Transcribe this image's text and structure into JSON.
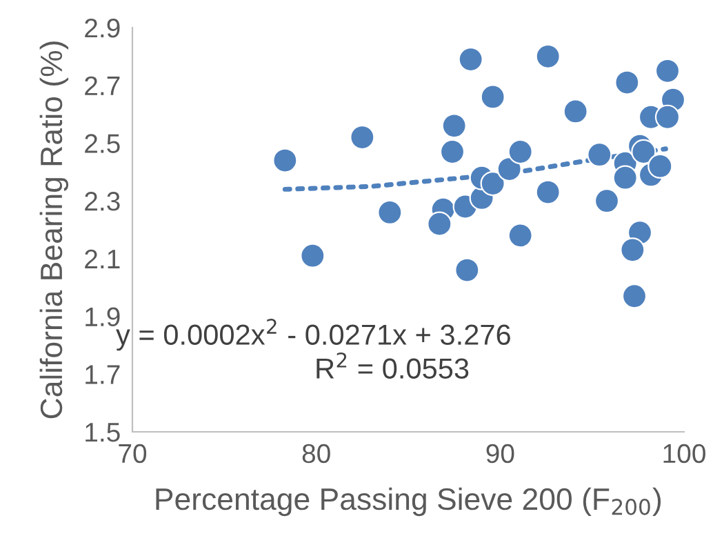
{
  "chart_data": {
    "type": "scatter",
    "xlabel": "Percentage Passing Sieve 200 (F$_{200}$)",
    "ylabel": "California Bearing Ratio (%)",
    "xlim": [
      70,
      100
    ],
    "xticks": [
      70,
      80,
      90,
      100
    ],
    "ylim": [
      1.5,
      2.9
    ],
    "yticks": [
      1.5,
      1.7,
      1.9,
      2.1,
      2.3,
      2.5,
      2.7,
      2.9
    ],
    "grid": false,
    "series": [
      {
        "marker": "circle",
        "color": "#4f81bd",
        "x": [
          78.3,
          79.8,
          82.5,
          84.0,
          86.9,
          86.7,
          87.5,
          87.4,
          88.4,
          88.2,
          88.1,
          89.0,
          89.0,
          89.6,
          89.6,
          90.5,
          91.1,
          91.1,
          92.6,
          92.6,
          94.1,
          95.4,
          95.8,
          96.9,
          96.8,
          96.8,
          97.6,
          97.2,
          97.3,
          97.6,
          97.8,
          98.2,
          99.1,
          99.4,
          99.1,
          98.2,
          98.7
        ],
        "values": [
          2.44,
          2.11,
          2.52,
          2.26,
          2.27,
          2.22,
          2.56,
          2.47,
          2.79,
          2.06,
          2.28,
          2.31,
          2.38,
          2.36,
          2.66,
          2.41,
          2.47,
          2.18,
          2.8,
          2.33,
          2.61,
          2.46,
          2.3,
          2.71,
          2.43,
          2.38,
          2.19,
          2.13,
          1.97,
          2.49,
          2.47,
          2.59,
          2.75,
          2.65,
          2.59,
          2.39,
          2.42
        ]
      },
      {
        "type": "line",
        "line_style": "dotted",
        "color": "#4f81bd",
        "x": [
          78.3,
          83,
          88,
          91,
          94.8,
          99.0
        ],
        "values": [
          2.34,
          2.35,
          2.38,
          2.4,
          2.44,
          2.48
        ]
      }
    ],
    "annotations": [
      "y = 0.0002x$^{2}$ - 0.0271x + 3.276",
      "R$^{2}$ = 0.0553"
    ]
  }
}
